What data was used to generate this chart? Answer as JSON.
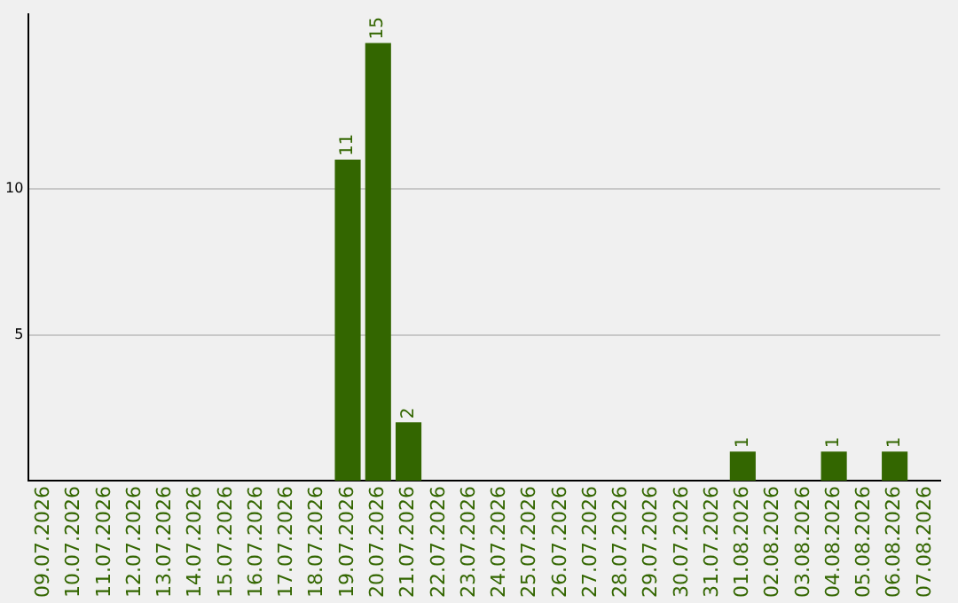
{
  "chart_data": {
    "type": "bar",
    "categories": [
      "09.07.2026",
      "10.07.2026",
      "11.07.2026",
      "12.07.2026",
      "13.07.2026",
      "14.07.2026",
      "15.07.2026",
      "16.07.2026",
      "17.07.2026",
      "18.07.2026",
      "19.07.2026",
      "20.07.2026",
      "21.07.2026",
      "22.07.2026",
      "23.07.2026",
      "24.07.2026",
      "25.07.2026",
      "26.07.2026",
      "27.07.2026",
      "28.07.2026",
      "29.07.2026",
      "30.07.2026",
      "31.07.2026",
      "01.08.2026",
      "02.08.2026",
      "03.08.2026",
      "04.08.2026",
      "05.08.2026",
      "06.08.2026",
      "07.08.2026"
    ],
    "values": [
      0,
      0,
      0,
      0,
      0,
      0,
      0,
      0,
      0,
      0,
      11,
      15,
      2,
      0,
      0,
      0,
      0,
      0,
      0,
      0,
      0,
      0,
      0,
      1,
      0,
      0,
      1,
      0,
      1,
      0
    ],
    "value_labels": [
      null,
      null,
      null,
      null,
      null,
      null,
      null,
      null,
      null,
      null,
      "11",
      "15",
      "2",
      null,
      null,
      null,
      null,
      null,
      null,
      null,
      null,
      null,
      null,
      "1",
      null,
      null,
      "1",
      null,
      "1",
      null
    ],
    "color": "#336600",
    "ylim": [
      0,
      16
    ],
    "yticks": [
      5,
      10
    ],
    "grid": "y",
    "legend": false
  }
}
